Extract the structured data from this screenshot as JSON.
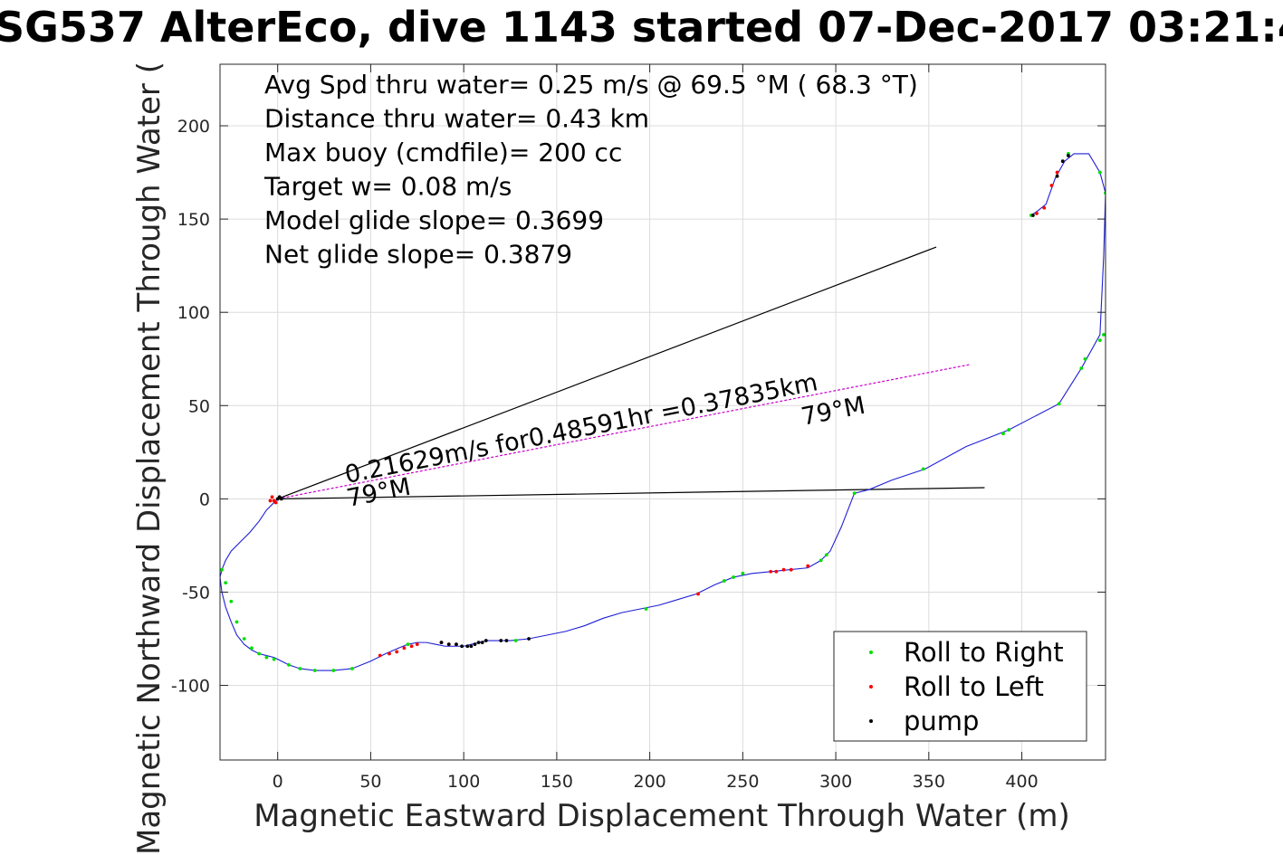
{
  "chart_data": {
    "type": "scatter",
    "title": "SG537 AlterEco, dive 1143 started 07-Dec-2017 03:21:4",
    "xlabel": "Magnetic Eastward Displacement Through Water (m)",
    "ylabel": "Magnetic Northward Displacement Through Water (",
    "xlim": [
      -31,
      445
    ],
    "ylim": [
      -140,
      233
    ],
    "xticks": [
      0,
      50,
      100,
      150,
      200,
      250,
      300,
      350,
      400
    ],
    "yticks": [
      -100,
      -50,
      0,
      50,
      100,
      150,
      200
    ],
    "grid": true,
    "legend_position": "bottom-right",
    "info_lines": [
      "Avg Spd thru water=  0.25 m/s @  69.5 °M ( 68.3 °T)",
      "Distance thru water=  0.43 km",
      "Max buoy (cmdfile)= 200 cc",
      "Target w= 0.08 m/s",
      "Model glide slope= 0.3699",
      "Net glide slope= 0.3879"
    ],
    "annotations": [
      {
        "text": "0.21629m/s for0.48591hr =0.37835km",
        "x": 36,
        "y": 10
      },
      {
        "text": "79°M",
        "x": 38,
        "y": -5
      },
      {
        "text": "79°M",
        "x": 282,
        "y": 40
      }
    ],
    "lines": [
      {
        "name": "upper",
        "color": "#000000",
        "x": [
          0,
          354
        ],
        "y": [
          0,
          135
        ]
      },
      {
        "name": "lower",
        "color": "#000000",
        "x": [
          0,
          380
        ],
        "y": [
          0,
          6
        ]
      },
      {
        "name": "current",
        "color": "#cc00cc",
        "dashed": true,
        "x": [
          0,
          372
        ],
        "y": [
          0,
          72
        ]
      }
    ],
    "track": {
      "color": "#1f1fd6",
      "x": [
        0,
        -3,
        -6,
        -10,
        -15,
        -20,
        -25,
        -28,
        -30,
        -31,
        -30,
        -28,
        -25,
        -22,
        -18,
        -14,
        -10,
        -6,
        -2,
        0,
        6,
        12,
        20,
        30,
        40,
        50,
        58,
        65,
        70,
        75,
        80,
        85,
        90,
        95,
        100,
        104,
        108,
        112,
        118,
        125,
        135,
        145,
        155,
        165,
        175,
        185,
        195,
        205,
        215,
        225,
        235,
        245,
        255,
        265,
        275,
        285,
        292,
        297,
        303,
        310,
        318,
        330,
        348,
        370,
        393,
        420,
        432,
        442,
        444,
        445,
        442,
        436,
        428,
        423,
        418,
        413,
        408,
        405
      ],
      "y": [
        0,
        -3,
        -6,
        -12,
        -18,
        -23,
        -28,
        -33,
        -38,
        -42,
        -50,
        -58,
        -66,
        -73,
        -78,
        -81,
        -83,
        -84,
        -85,
        -86,
        -89,
        -91,
        -92,
        -92,
        -91,
        -87,
        -83,
        -80,
        -78,
        -77,
        -77,
        -78,
        -79,
        -79,
        -79,
        -78,
        -77,
        -76,
        -76,
        -76,
        -75,
        -73,
        -71,
        -68,
        -64,
        -61,
        -59,
        -57,
        -54,
        -51,
        -46,
        -42,
        -40,
        -39,
        -38,
        -37,
        -33,
        -28,
        -15,
        3,
        5,
        10,
        16,
        28,
        37,
        51,
        70,
        88,
        130,
        164,
        175,
        185,
        185,
        181,
        172,
        158,
        154,
        152
      ]
    },
    "series": [
      {
        "name": "Roll to Right",
        "color": "#00e000",
        "x": [
          -30,
          -28,
          -25,
          -22,
          -18,
          -14,
          -10,
          -6,
          -2,
          6,
          12,
          20,
          30,
          40,
          70,
          128,
          198,
          240,
          245,
          250,
          292,
          295,
          310,
          347,
          390,
          393,
          420,
          432,
          434,
          442,
          444,
          445,
          442,
          425,
          405
        ],
        "y": [
          -38,
          -45,
          -55,
          -66,
          -75,
          -80,
          -83,
          -85,
          -86,
          -89,
          -91,
          -92,
          -92,
          -91,
          -78,
          -76,
          -59,
          -44,
          -42,
          -40,
          -33,
          -30,
          3,
          16,
          35,
          37,
          51,
          70,
          75,
          85,
          88,
          164,
          175,
          185,
          152
        ]
      },
      {
        "name": "Roll to Left",
        "color": "#ff0000",
        "x": [
          0,
          -1,
          -2,
          -3,
          -4,
          55,
          60,
          64,
          68,
          72,
          75,
          88,
          92,
          96,
          226,
          265,
          268,
          272,
          276,
          285,
          408,
          412,
          416,
          419
        ],
        "y": [
          0,
          -2,
          -1,
          1,
          -1,
          -84,
          -83,
          -82,
          -80,
          -79,
          -78,
          -77,
          -78,
          -78,
          -51,
          -39,
          -39,
          -38,
          -38,
          -36,
          153,
          156,
          168,
          175
        ],
        "alt_color": "#cc00cc"
      },
      {
        "name": "pump",
        "color": "#000000",
        "x": [
          0,
          1,
          2,
          88,
          92,
          96,
          99,
          102,
          104,
          106,
          108,
          110,
          112,
          120,
          123,
          135,
          406,
          422,
          425,
          419
        ],
        "y": [
          0,
          1,
          0,
          -77,
          -78,
          -78,
          -79,
          -79,
          -79,
          -78,
          -77,
          -77,
          -76,
          -76,
          -76,
          -75,
          152,
          181,
          184,
          173
        ]
      }
    ]
  }
}
